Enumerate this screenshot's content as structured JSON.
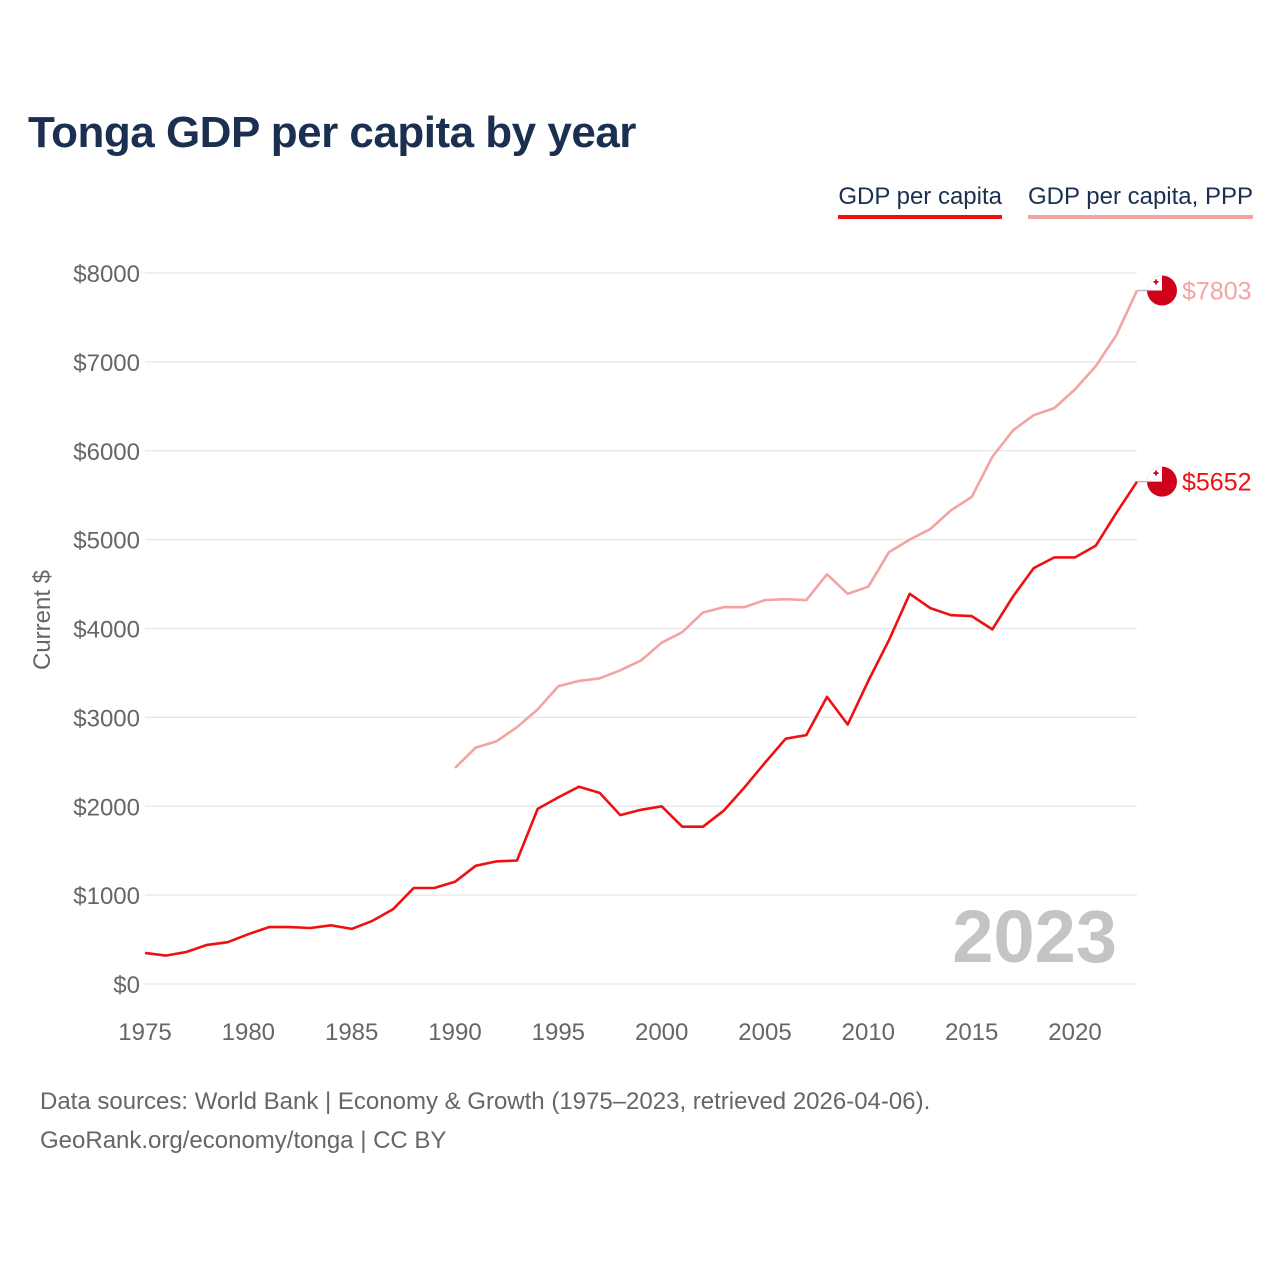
{
  "title": "Tonga GDP per capita by year",
  "legend": {
    "gdp_label": "GDP per capita",
    "ppp_label": "GDP per capita, PPP"
  },
  "source": {
    "line1": "Data sources: World Bank | Economy & Growth (1975–2023, retrieved 2026-04-06).",
    "line2": "GeoRank.org/economy/tonga | CC BY"
  },
  "chart_data": {
    "type": "line",
    "title": "Tonga GDP per capita by year",
    "xlabel": "",
    "ylabel": "Current $",
    "xlim": [
      1975,
      2023
    ],
    "ylim": [
      0,
      8000
    ],
    "x_ticks": [
      1975,
      1980,
      1985,
      1990,
      1995,
      2000,
      2005,
      2010,
      2015,
      2020
    ],
    "y_ticks": [
      {
        "value": 0,
        "label": "$0"
      },
      {
        "value": 1000,
        "label": "$1000"
      },
      {
        "value": 2000,
        "label": "$2000"
      },
      {
        "value": 3000,
        "label": "$3000"
      },
      {
        "value": 4000,
        "label": "$4000"
      },
      {
        "value": 5000,
        "label": "$5000"
      },
      {
        "value": 6000,
        "label": "$6000"
      },
      {
        "value": 7000,
        "label": "$7000"
      },
      {
        "value": 8000,
        "label": "$8000"
      }
    ],
    "grid": true,
    "year_label": "2023",
    "series": [
      {
        "name": "GDP per capita",
        "color": "#ee1111",
        "end_label": "$5652",
        "x": [
          1975,
          1976,
          1977,
          1978,
          1979,
          1980,
          1981,
          1982,
          1983,
          1984,
          1985,
          1986,
          1987,
          1988,
          1989,
          1990,
          1991,
          1992,
          1993,
          1994,
          1995,
          1996,
          1997,
          1998,
          1999,
          2000,
          2001,
          2002,
          2003,
          2004,
          2005,
          2006,
          2007,
          2008,
          2009,
          2010,
          2011,
          2012,
          2013,
          2014,
          2015,
          2016,
          2017,
          2018,
          2019,
          2020,
          2021,
          2022,
          2023
        ],
        "values": [
          350,
          320,
          360,
          440,
          470,
          560,
          640,
          640,
          630,
          660,
          620,
          710,
          840,
          1080,
          1080,
          1150,
          1330,
          1380,
          1390,
          1970,
          2100,
          2220,
          2150,
          1900,
          1960,
          2000,
          1770,
          1770,
          1950,
          2210,
          2490,
          2760,
          2800,
          3230,
          2920,
          3410,
          3870,
          4390,
          4230,
          4150,
          4140,
          3990,
          4360,
          4680,
          4800,
          4800,
          4930,
          5300,
          5652
        ]
      },
      {
        "name": "GDP per capita, PPP",
        "color": "#f4a3a3",
        "end_label": "$7803",
        "x": [
          1990,
          1991,
          1992,
          1993,
          1994,
          1995,
          1996,
          1997,
          1998,
          1999,
          2000,
          2001,
          2002,
          2003,
          2004,
          2005,
          2006,
          2007,
          2008,
          2009,
          2010,
          2011,
          2012,
          2013,
          2014,
          2015,
          2016,
          2017,
          2018,
          2019,
          2020,
          2021,
          2022,
          2023
        ],
        "values": [
          2430,
          2660,
          2730,
          2890,
          3090,
          3350,
          3410,
          3440,
          3530,
          3640,
          3840,
          3960,
          4180,
          4240,
          4240,
          4320,
          4330,
          4320,
          4610,
          4390,
          4470,
          4860,
          5000,
          5120,
          5330,
          5480,
          5930,
          6230,
          6400,
          6480,
          6690,
          6950,
          7300,
          7803
        ]
      }
    ]
  }
}
